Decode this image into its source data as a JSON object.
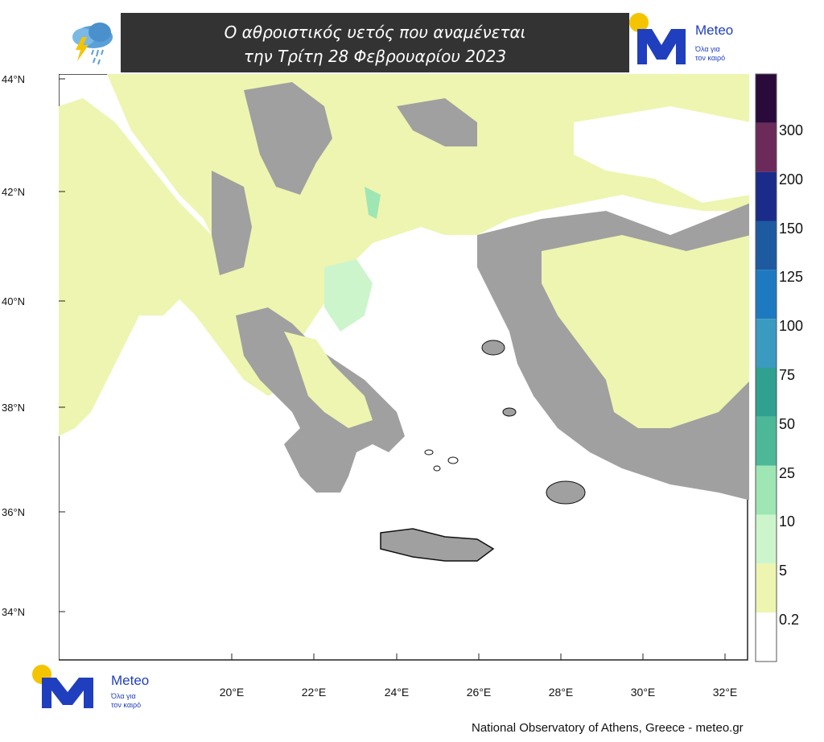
{
  "title": {
    "line1": "Ο αθροιστικός υετός που αναμένεται",
    "line2": "την Τρίτη 28 Φεβρουαρίου 2023"
  },
  "brand": {
    "name": "Meteo",
    "tagline_1": "Όλα για",
    "tagline_2": "τον καιρό",
    "blue": "#1f3fbf",
    "sun": "#f5c400"
  },
  "latitude_labels": [
    "44°N",
    "42°N",
    "40°N",
    "38°N",
    "36°N",
    "34°N"
  ],
  "longitude_labels": [
    "20°E",
    "22°E",
    "24°E",
    "26°E",
    "28°E",
    "30°E",
    "32°E"
  ],
  "colorbar": {
    "labels": [
      "300",
      "200",
      "150",
      "125",
      "100",
      "75",
      "50",
      "25",
      "10",
      "5",
      "0.2"
    ],
    "colors": [
      "#2a0a3a",
      "#6b2a5a",
      "#1a2b8a",
      "#1d5aa0",
      "#1e7ac0",
      "#3a9abf",
      "#30a090",
      "#4cb898",
      "#9ee6b4",
      "#ccf5cc",
      "#eef5b0",
      "#ffffff"
    ]
  },
  "legend_colors": {
    "land_dry": "#a0a0a0",
    "rain_light": "#eef5b0",
    "rain_moderate": "#ccf5cc",
    "rain_heavy": "#9ee6b4",
    "sea": "#ffffff"
  },
  "footer": "National Observatory of Athens, Greece - meteo.gr"
}
